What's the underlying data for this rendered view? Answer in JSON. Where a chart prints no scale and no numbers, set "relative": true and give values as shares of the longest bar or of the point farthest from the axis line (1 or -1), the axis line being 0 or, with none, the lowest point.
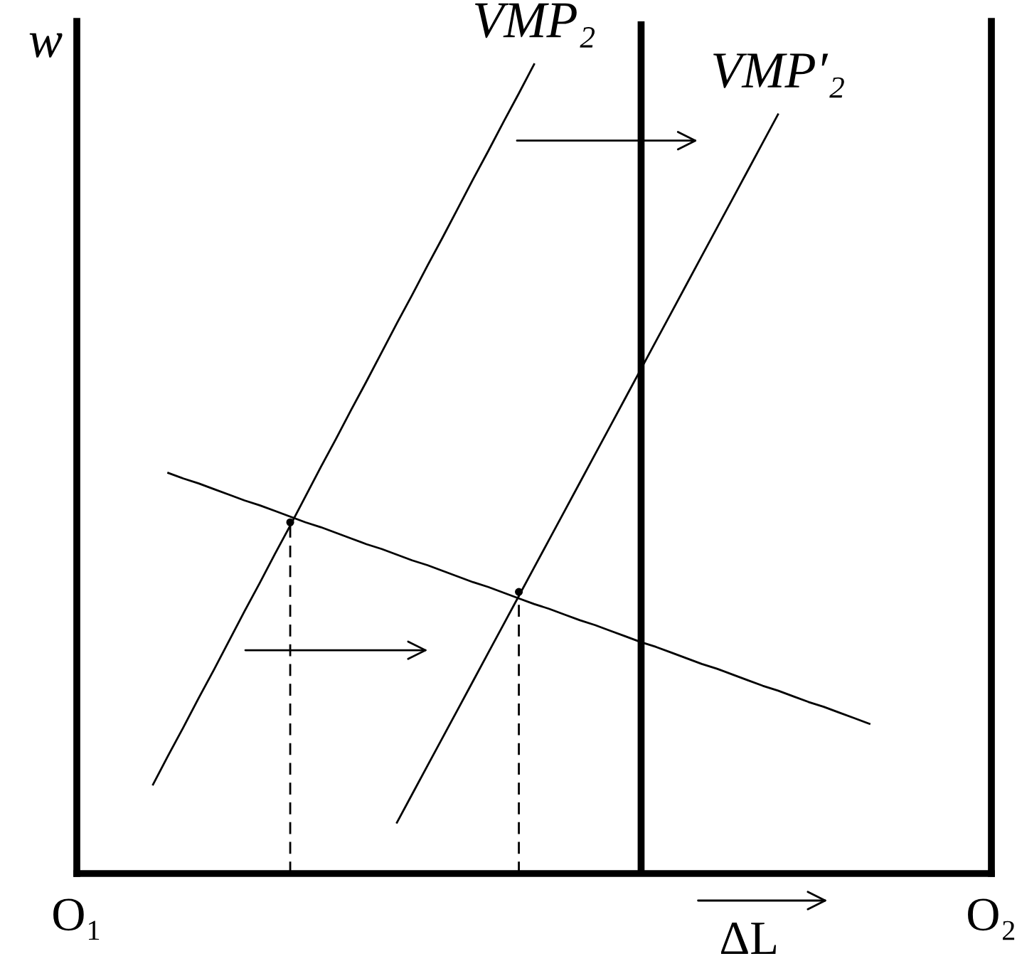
{
  "chart_data": {
    "type": "line",
    "relative": true,
    "ylabel": "w",
    "categories": [
      "O₁",
      null,
      null,
      null,
      null,
      null,
      null,
      null,
      null,
      null,
      null,
      null,
      null,
      null,
      null,
      null,
      null,
      null,
      null,
      null,
      null,
      null,
      null,
      null,
      null,
      null,
      null,
      null,
      null,
      null,
      null,
      null,
      null,
      null,
      null,
      null,
      null,
      null,
      null,
      null,
      null,
      null,
      null,
      null,
      null,
      null,
      null,
      null,
      null,
      null,
      null,
      null,
      null,
      null,
      null,
      null,
      null,
      null,
      null,
      null,
      "O₂"
    ],
    "series": [
      {
        "name": "VMP₂",
        "color": "#000000",
        "values": [
          null,
          null,
          null,
          null,
          null,
          0.11,
          0.146,
          0.181,
          0.217,
          0.252,
          0.288,
          0.324,
          0.359,
          0.395,
          0.43,
          0.466,
          0.502,
          0.537,
          0.573,
          0.608,
          0.644,
          0.68,
          0.715,
          0.751,
          0.786,
          0.822,
          0.858,
          0.893,
          0.929,
          0.964,
          1.0,
          null,
          null,
          null,
          null,
          null,
          null,
          null,
          null,
          null,
          null,
          null,
          null,
          null,
          null,
          null,
          null,
          null,
          null,
          null,
          null,
          null,
          null,
          null,
          null,
          null,
          null,
          null,
          null,
          null,
          null
        ]
      },
      {
        "name": "VMP′₂",
        "color": "#000000",
        "values": [
          null,
          null,
          null,
          null,
          null,
          null,
          null,
          null,
          null,
          null,
          null,
          null,
          null,
          null,
          null,
          null,
          null,
          null,
          null,
          null,
          null,
          0.063,
          0.098,
          0.133,
          0.168,
          0.203,
          0.238,
          0.273,
          0.308,
          0.343,
          0.378,
          0.413,
          0.448,
          0.483,
          0.518,
          0.553,
          0.588,
          0.623,
          0.658,
          0.693,
          0.728,
          0.763,
          0.798,
          0.833,
          0.868,
          0.903,
          0.938,
          null,
          null,
          null,
          null,
          null,
          null,
          null,
          null,
          null,
          null,
          null,
          null,
          null,
          null
        ]
      },
      {
        "color": "#000000",
        "values": [
          null,
          null,
          null,
          null,
          null,
          null,
          0.495,
          0.488,
          0.482,
          0.475,
          0.468,
          0.461,
          0.455,
          0.448,
          0.441,
          0.434,
          0.428,
          0.421,
          0.414,
          0.407,
          0.401,
          0.394,
          0.387,
          0.381,
          0.374,
          0.367,
          0.36,
          0.354,
          0.347,
          0.34,
          0.333,
          0.327,
          0.32,
          0.313,
          0.307,
          0.3,
          0.293,
          0.286,
          0.28,
          0.273,
          0.266,
          0.259,
          0.253,
          0.246,
          0.239,
          0.232,
          0.226,
          0.219,
          0.212,
          0.206,
          0.199,
          0.192,
          0.185,
          null,
          null,
          null,
          null,
          null,
          null,
          null,
          null
        ]
      },
      {
        "type": "lollipop",
        "color": "#000000",
        "line_style": "dashed",
        "marker": "circle",
        "values": [
          null,
          null,
          null,
          null,
          null,
          null,
          null,
          null,
          null,
          null,
          null,
          null,
          null,
          null,
          0.434,
          null,
          null,
          null,
          null,
          null,
          null,
          null,
          null,
          null,
          null,
          null,
          null,
          null,
          null,
          0.348,
          null,
          null,
          null,
          null,
          null,
          null,
          null,
          null,
          null,
          null,
          null,
          null,
          null,
          null,
          null,
          null,
          null,
          null,
          null,
          null,
          null,
          null,
          null,
          null,
          null,
          null,
          null,
          null,
          null,
          null,
          null
        ]
      }
    ],
    "annotations": [
      "ΔL"
    ],
    "marker": "none",
    "line_style": "solid"
  }
}
